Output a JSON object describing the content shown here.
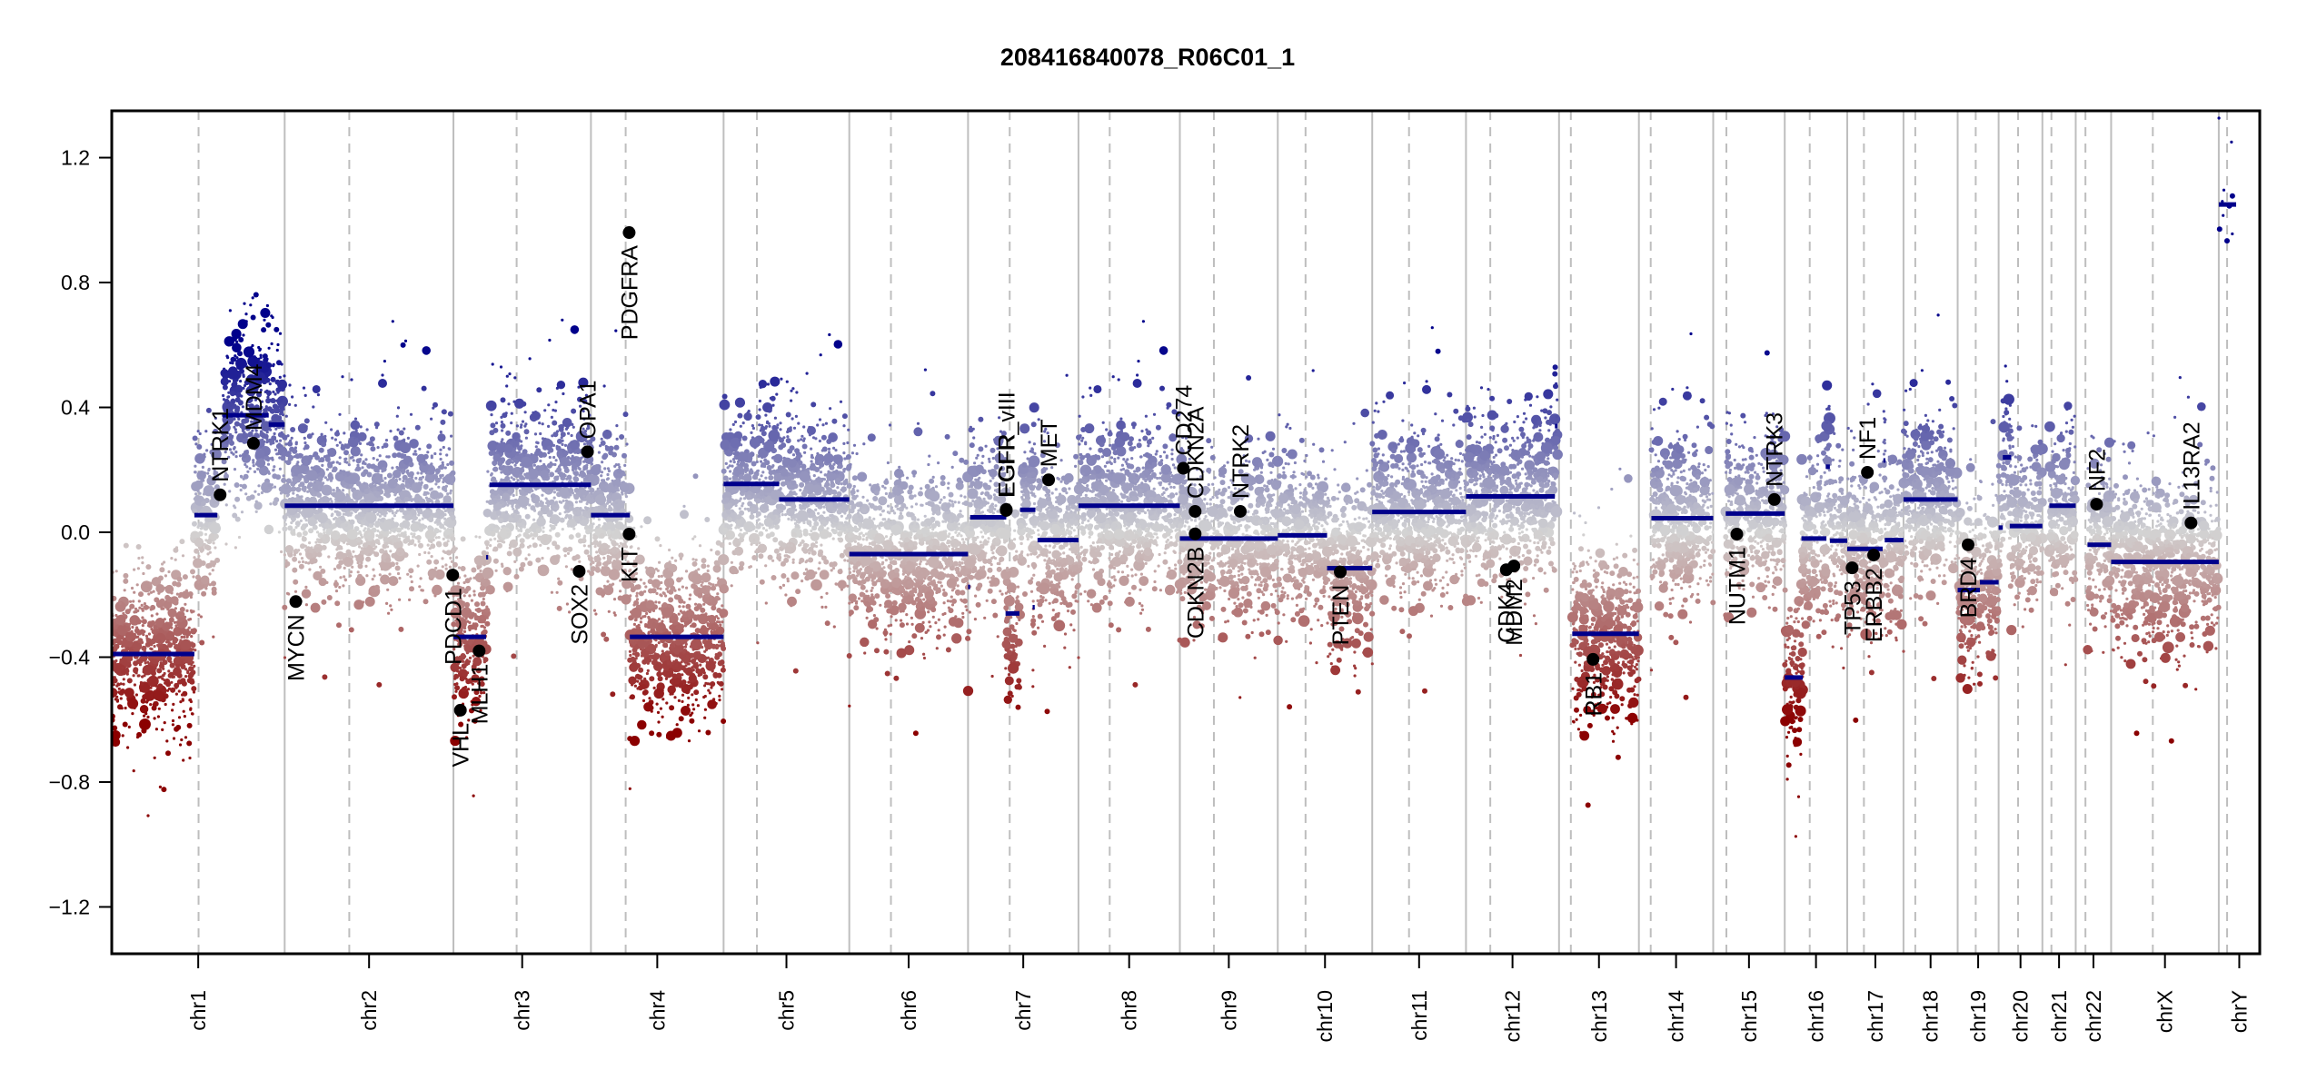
{
  "chart_data": {
    "type": "scatter",
    "title": "208416840078_R06C01_1",
    "xlabel": "",
    "ylabel": "",
    "ylim": [
      -1.35,
      1.35
    ],
    "yticks": [
      -1.2,
      -0.8,
      -0.4,
      0.0,
      0.4,
      0.8,
      1.2
    ],
    "ytick_labels": [
      "-1.2",
      "-0.8",
      "-0.4",
      "0.0",
      "0.4",
      "0.8",
      "1.2"
    ],
    "x_units": "Mb (cumulative genome position)",
    "grid": "chromosome boundaries (solid grey) and centromeres (dashed grey)",
    "colors": {
      "loss": "#8B0000",
      "neutral": "#D3D3D3",
      "gain": "#00008B",
      "segment": "#00008B",
      "gene_point": "#000000",
      "boundary": "#BEBEBE"
    },
    "chromosomes": [
      {
        "name": "chr1",
        "length": 249,
        "centromere": 125
      },
      {
        "name": "chr2",
        "length": 243,
        "centromere": 93
      },
      {
        "name": "chr3",
        "length": 198,
        "centromere": 91
      },
      {
        "name": "chr4",
        "length": 191,
        "centromere": 50
      },
      {
        "name": "chr5",
        "length": 181,
        "centromere": 48
      },
      {
        "name": "chr6",
        "length": 171,
        "centromere": 60
      },
      {
        "name": "chr7",
        "length": 159,
        "centromere": 60
      },
      {
        "name": "chr8",
        "length": 146,
        "centromere": 45
      },
      {
        "name": "chr9",
        "length": 141,
        "centromere": 49
      },
      {
        "name": "chr10",
        "length": 136,
        "centromere": 40
      },
      {
        "name": "chr11",
        "length": 135,
        "centromere": 53
      },
      {
        "name": "chr12",
        "length": 134,
        "centromere": 35
      },
      {
        "name": "chr13",
        "length": 115,
        "centromere": 17
      },
      {
        "name": "chr14",
        "length": 107,
        "centromere": 17
      },
      {
        "name": "chr15",
        "length": 103,
        "centromere": 19
      },
      {
        "name": "chr16",
        "length": 90,
        "centromere": 36
      },
      {
        "name": "chr17",
        "length": 81,
        "centromere": 24
      },
      {
        "name": "chr18",
        "length": 78,
        "centromere": 17
      },
      {
        "name": "chr19",
        "length": 59,
        "centromere": 26
      },
      {
        "name": "chr20",
        "length": 63,
        "centromere": 28
      },
      {
        "name": "chr21",
        "length": 48,
        "centromere": 13
      },
      {
        "name": "chr22",
        "length": 51,
        "centromere": 14
      },
      {
        "name": "chrX",
        "length": 155,
        "centromere": 60
      },
      {
        "name": "chrY",
        "length": 59,
        "centromere": 12
      }
    ],
    "segments": [
      {
        "chr": "chr1",
        "start": 0,
        "end": 119,
        "value": -0.39
      },
      {
        "chr": "chr1",
        "start": 119,
        "end": 152,
        "value": 0.055
      },
      {
        "chr": "chr1",
        "start": 160,
        "end": 226,
        "value": 0.375
      },
      {
        "chr": "chr1",
        "start": 226,
        "end": 249,
        "value": 0.345
      },
      {
        "chr": "chr2",
        "start": 0,
        "end": 243,
        "value": 0.085
      },
      {
        "chr": "chr3",
        "start": 0,
        "end": 47,
        "value": -0.335
      },
      {
        "chr": "chr3",
        "start": 47,
        "end": 50,
        "value": -0.08
      },
      {
        "chr": "chr3",
        "start": 52,
        "end": 198,
        "value": 0.152
      },
      {
        "chr": "chr4",
        "start": 0,
        "end": 56,
        "value": 0.055
      },
      {
        "chr": "chr4",
        "start": 56,
        "end": 191,
        "value": -0.335
      },
      {
        "chr": "chr5",
        "start": 0,
        "end": 80,
        "value": 0.155
      },
      {
        "chr": "chr5",
        "start": 80,
        "end": 181,
        "value": 0.105
      },
      {
        "chr": "chr6",
        "start": 0,
        "end": 171,
        "value": -0.07
      },
      {
        "chr": "chr7",
        "start": 0,
        "end": 3,
        "value": -0.175
      },
      {
        "chr": "chr7",
        "start": 3,
        "end": 55,
        "value": 0.048
      },
      {
        "chr": "chr7",
        "start": 54,
        "end": 74,
        "value": -0.26
      },
      {
        "chr": "chr7",
        "start": 75,
        "end": 97,
        "value": 0.072
      },
      {
        "chr": "chr7",
        "start": 93,
        "end": 96,
        "value": -0.24
      },
      {
        "chr": "chr7",
        "start": 100,
        "end": 159,
        "value": -0.025
      },
      {
        "chr": "chr8",
        "start": 0,
        "end": 146,
        "value": 0.085
      },
      {
        "chr": "chr9",
        "start": 0,
        "end": 141,
        "value": -0.02
      },
      {
        "chr": "chr10",
        "start": 0,
        "end": 71,
        "value": -0.01
      },
      {
        "chr": "chr10",
        "start": 71,
        "end": 136,
        "value": -0.115
      },
      {
        "chr": "chr11",
        "start": 0,
        "end": 135,
        "value": 0.065
      },
      {
        "chr": "chr12",
        "start": 0,
        "end": 128,
        "value": 0.115
      },
      {
        "chr": "chr12",
        "start": 128,
        "end": 132,
        "value": 0.34
      },
      {
        "chr": "chr13",
        "start": 19,
        "end": 115,
        "value": -0.325
      },
      {
        "chr": "chr14",
        "start": 18,
        "end": 107,
        "value": 0.045
      },
      {
        "chr": "chr15",
        "start": 18,
        "end": 103,
        "value": 0.06
      },
      {
        "chr": "chr16",
        "start": 0,
        "end": 26,
        "value": -0.465
      },
      {
        "chr": "chr16",
        "start": 24,
        "end": 60,
        "value": -0.02
      },
      {
        "chr": "chr16",
        "start": 59,
        "end": 65,
        "value": 0.21
      },
      {
        "chr": "chr16",
        "start": 65,
        "end": 90,
        "value": -0.027
      },
      {
        "chr": "chr17",
        "start": 0,
        "end": 51,
        "value": -0.053
      },
      {
        "chr": "chr17",
        "start": 52,
        "end": 55,
        "value": 0.23
      },
      {
        "chr": "chr17",
        "start": 54,
        "end": 81,
        "value": -0.025
      },
      {
        "chr": "chr18",
        "start": 0,
        "end": 78,
        "value": 0.105
      },
      {
        "chr": "chr19",
        "start": 0,
        "end": 32,
        "value": -0.185
      },
      {
        "chr": "chr19",
        "start": 32,
        "end": 59,
        "value": -0.16
      },
      {
        "chr": "chr20",
        "start": 0,
        "end": 6,
        "value": 0.015
      },
      {
        "chr": "chr20",
        "start": 6,
        "end": 18,
        "value": 0.24
      },
      {
        "chr": "chr20",
        "start": 16,
        "end": 63,
        "value": 0.02
      },
      {
        "chr": "chr21",
        "start": 10,
        "end": 48,
        "value": 0.085
      },
      {
        "chr": "chr22",
        "start": 17,
        "end": 51,
        "value": -0.04
      },
      {
        "chr": "chrX",
        "start": 0,
        "end": 155,
        "value": -0.095
      },
      {
        "chr": "chrY",
        "start": 0,
        "end": 25,
        "value": 1.05
      }
    ],
    "genes": [
      {
        "name": "NTRK1",
        "chr": "chr1",
        "pos": 156,
        "value": 0.12,
        "label": "above"
      },
      {
        "name": "MDM4",
        "chr": "chr1",
        "pos": 204,
        "value": 0.285,
        "label": "above"
      },
      {
        "name": "MYCN",
        "chr": "chr2",
        "pos": 16,
        "value": -0.222,
        "label": "below"
      },
      {
        "name": "PDCD1",
        "chr": "chr2",
        "pos": 242,
        "value": -0.137,
        "label": "below"
      },
      {
        "name": "VHL",
        "chr": "chr3",
        "pos": 10,
        "value": -0.57,
        "label": "below"
      },
      {
        "name": "MLH1",
        "chr": "chr3",
        "pos": 37,
        "value": -0.38,
        "label": "below"
      },
      {
        "name": "SOX2",
        "chr": "chr3",
        "pos": 181,
        "value": -0.125,
        "label": "below"
      },
      {
        "name": "OPA1",
        "chr": "chr3",
        "pos": 193,
        "value": 0.258,
        "label": "above"
      },
      {
        "name": "KIT",
        "chr": "chr4",
        "pos": 55,
        "value": -0.006,
        "label": "below"
      },
      {
        "name": "PDGFRA",
        "chr": "chr4",
        "pos": 55,
        "value": 0.96,
        "label": "below"
      },
      {
        "name": "EGFR",
        "chr": "chr7",
        "pos": 55,
        "value": 0.073,
        "label": "above"
      },
      {
        "name": "EGFR_vIII",
        "chr": "chr7",
        "pos": 55,
        "value": 0.07,
        "label": "above"
      },
      {
        "name": "MET",
        "chr": "chr7",
        "pos": 116,
        "value": 0.168,
        "label": "above"
      },
      {
        "name": "CD274",
        "chr": "chr9",
        "pos": 5,
        "value": 0.205,
        "label": "above"
      },
      {
        "name": "CDKN2A",
        "chr": "chr9",
        "pos": 22,
        "value": 0.067,
        "label": "above"
      },
      {
        "name": "CDKN2B",
        "chr": "chr9",
        "pos": 22,
        "value": -0.005,
        "label": "below"
      },
      {
        "name": "NTRK2",
        "chr": "chr9",
        "pos": 87,
        "value": 0.067,
        "label": "above"
      },
      {
        "name": "PTEN",
        "chr": "chr10",
        "pos": 90,
        "value": -0.127,
        "label": "below"
      },
      {
        "name": "CDK4",
        "chr": "chr12",
        "pos": 58,
        "value": -0.12,
        "label": "below"
      },
      {
        "name": "MDM2",
        "chr": "chr12",
        "pos": 69,
        "value": -0.108,
        "label": "below"
      },
      {
        "name": "RB1",
        "chr": "chr13",
        "pos": 49,
        "value": -0.407,
        "label": "below"
      },
      {
        "name": "NUTM1",
        "chr": "chr15",
        "pos": 34,
        "value": -0.006,
        "label": "below"
      },
      {
        "name": "NTRK3",
        "chr": "chr15",
        "pos": 88,
        "value": 0.105,
        "label": "above"
      },
      {
        "name": "TP53",
        "chr": "chr17",
        "pos": 7,
        "value": -0.114,
        "label": "below"
      },
      {
        "name": "NF1",
        "chr": "chr17",
        "pos": 29,
        "value": 0.192,
        "label": "above"
      },
      {
        "name": "ERBB2",
        "chr": "chr17",
        "pos": 38,
        "value": -0.073,
        "label": "below"
      },
      {
        "name": "BRD4",
        "chr": "chr19",
        "pos": 15,
        "value": -0.04,
        "label": "below"
      },
      {
        "name": "NF2",
        "chr": "chr22",
        "pos": 30,
        "value": 0.09,
        "label": "above"
      },
      {
        "name": "IL13RA2",
        "chr": "chrX",
        "pos": 115,
        "value": 0.03,
        "label": "above"
      }
    ]
  }
}
